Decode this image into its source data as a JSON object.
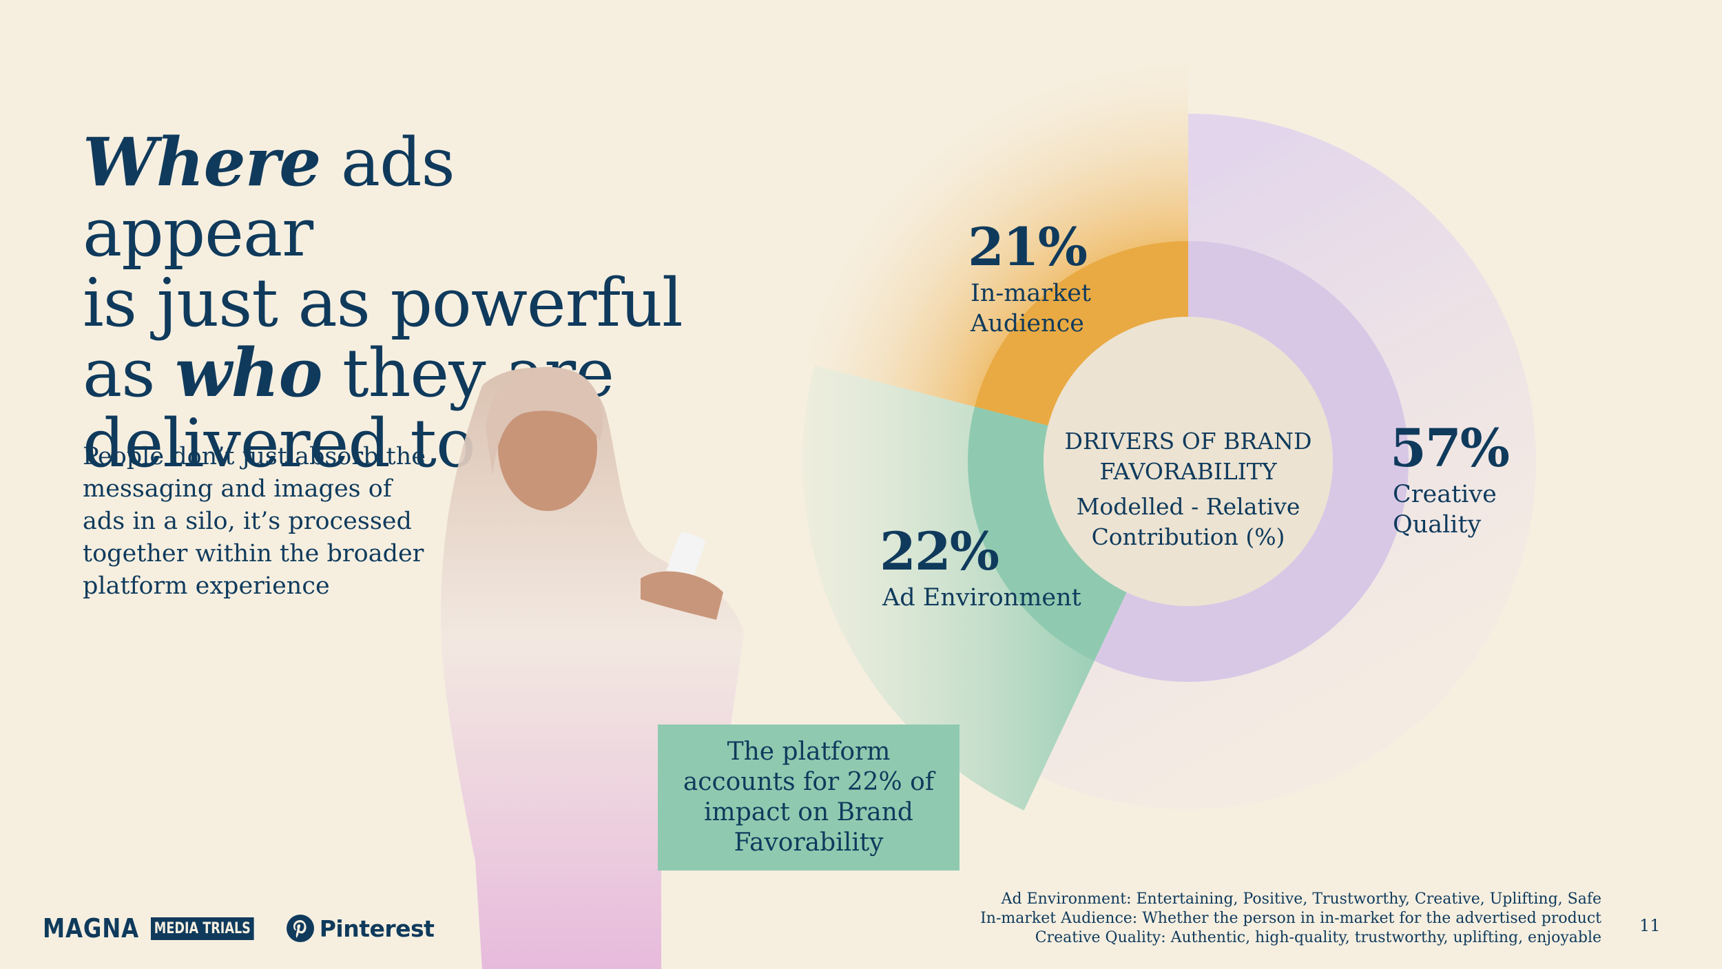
{
  "headline": {
    "line1_em": "Where",
    "line1_rest": " ads appear",
    "line2": "is just as powerful",
    "line3_pre": "as ",
    "line3_em": "who",
    "line3_rest": " they are",
    "line4": "delivered to"
  },
  "body_copy": "People don’t just absorb the messaging and images of ads in a silo, it’s processed together within the broader platform experience",
  "callout": "The platform accounts for 22% of impact on Brand Favorability",
  "footnotes": [
    "Ad Environment: Entertaining, Positive, Trustworthy, Creative, Uplifting, Safe",
    "In-market Audience: Whether the person in in-market for the advertised product",
    "Creative Quality: Authentic, high-quality, trustworthy, uplifting, enjoyable"
  ],
  "page_number": "11",
  "logos": {
    "magna": "MAGNA",
    "media_trials": "MEDIA TRIALS",
    "pinterest": "Pinterest"
  },
  "colors": {
    "navy": "#0f3a5c",
    "background": "#f6efe0",
    "in_market": "#e9aa43",
    "ad_environment": "#8fcab0",
    "creative_quality": "#d8c8e6",
    "center": "#ece3d2"
  },
  "chart_data": {
    "type": "pie",
    "title": "DRIVERS OF BRAND FAVORABILITY",
    "subtitle": "Modelled - Relative Contribution (%)",
    "categories": [
      "In-market Audience",
      "Ad Environment",
      "Creative Quality"
    ],
    "values": [
      21,
      22,
      57
    ],
    "value_labels": [
      "21%",
      "22%",
      "57%"
    ],
    "label_lines": [
      [
        "In-market",
        "Audience"
      ],
      [
        "Ad Environment"
      ],
      [
        "Creative",
        "Quality"
      ]
    ],
    "colors": [
      "#e9aa43",
      "#8fcab0",
      "#d8c8e6"
    ]
  }
}
